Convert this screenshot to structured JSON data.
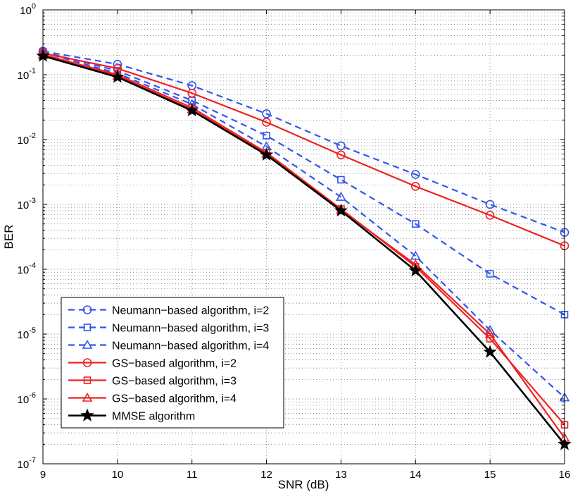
{
  "chart_data": {
    "type": "line",
    "xlabel": "SNR (dB)",
    "ylabel": "BER",
    "x": [
      9,
      10,
      11,
      12,
      13,
      14,
      15,
      16
    ],
    "xlim": [
      9,
      16
    ],
    "ylim": [
      1e-07,
      1
    ],
    "yscale": "log",
    "grid": true,
    "legend_position": "lower-left",
    "x_tick_labels": [
      "9",
      "10",
      "11",
      "12",
      "13",
      "14",
      "15",
      "16"
    ],
    "y_ticks": [
      {
        "base": "10",
        "exp": "-7"
      },
      {
        "base": "10",
        "exp": "-6"
      },
      {
        "base": "10",
        "exp": "-5"
      },
      {
        "base": "10",
        "exp": "-4"
      },
      {
        "base": "10",
        "exp": "-3"
      },
      {
        "base": "10",
        "exp": "-2"
      },
      {
        "base": "10",
        "exp": "-1"
      },
      {
        "base": "10",
        "exp": "0"
      }
    ],
    "series": [
      {
        "name": "Neumann−based algorithm, i=2",
        "color": "#3355ee",
        "dash": true,
        "marker": "circle",
        "values": [
          0.23,
          0.145,
          0.068,
          0.025,
          0.008,
          0.0029,
          0.001,
          0.00037
        ]
      },
      {
        "name": "Neumann−based algorithm, i=3",
        "color": "#3355ee",
        "dash": true,
        "marker": "square",
        "values": [
          0.225,
          0.115,
          0.04,
          0.0115,
          0.0024,
          0.0005,
          8.5e-05,
          2e-05
        ]
      },
      {
        "name": "Neumann−based algorithm, i=4",
        "color": "#3355ee",
        "dash": true,
        "marker": "triangle",
        "values": [
          0.22,
          0.105,
          0.035,
          0.0078,
          0.0013,
          0.00016,
          1.15e-05,
          1.05e-06
        ]
      },
      {
        "name": "GS−based algorithm, i=2",
        "color": "#ee2222",
        "dash": false,
        "marker": "circle",
        "values": [
          0.215,
          0.125,
          0.052,
          0.0185,
          0.0058,
          0.0019,
          0.00068,
          0.00023
        ]
      },
      {
        "name": "GS−based algorithm, i=3",
        "color": "#ee2222",
        "dash": false,
        "marker": "square",
        "values": [
          0.205,
          0.1,
          0.031,
          0.0063,
          0.00085,
          0.00011,
          8.5e-06,
          4e-07
        ]
      },
      {
        "name": "GS−based algorithm, i=4",
        "color": "#ee2222",
        "dash": false,
        "marker": "triangle",
        "values": [
          0.2,
          0.095,
          0.029,
          0.006,
          0.00082,
          0.000118,
          1e-05,
          2.5e-07
        ]
      },
      {
        "name": "MMSE algorithm",
        "color": "#000000",
        "dash": false,
        "marker": "star",
        "values": [
          0.195,
          0.092,
          0.028,
          0.0058,
          0.0008,
          9.5e-05,
          5.3e-06,
          2e-07
        ]
      }
    ]
  }
}
